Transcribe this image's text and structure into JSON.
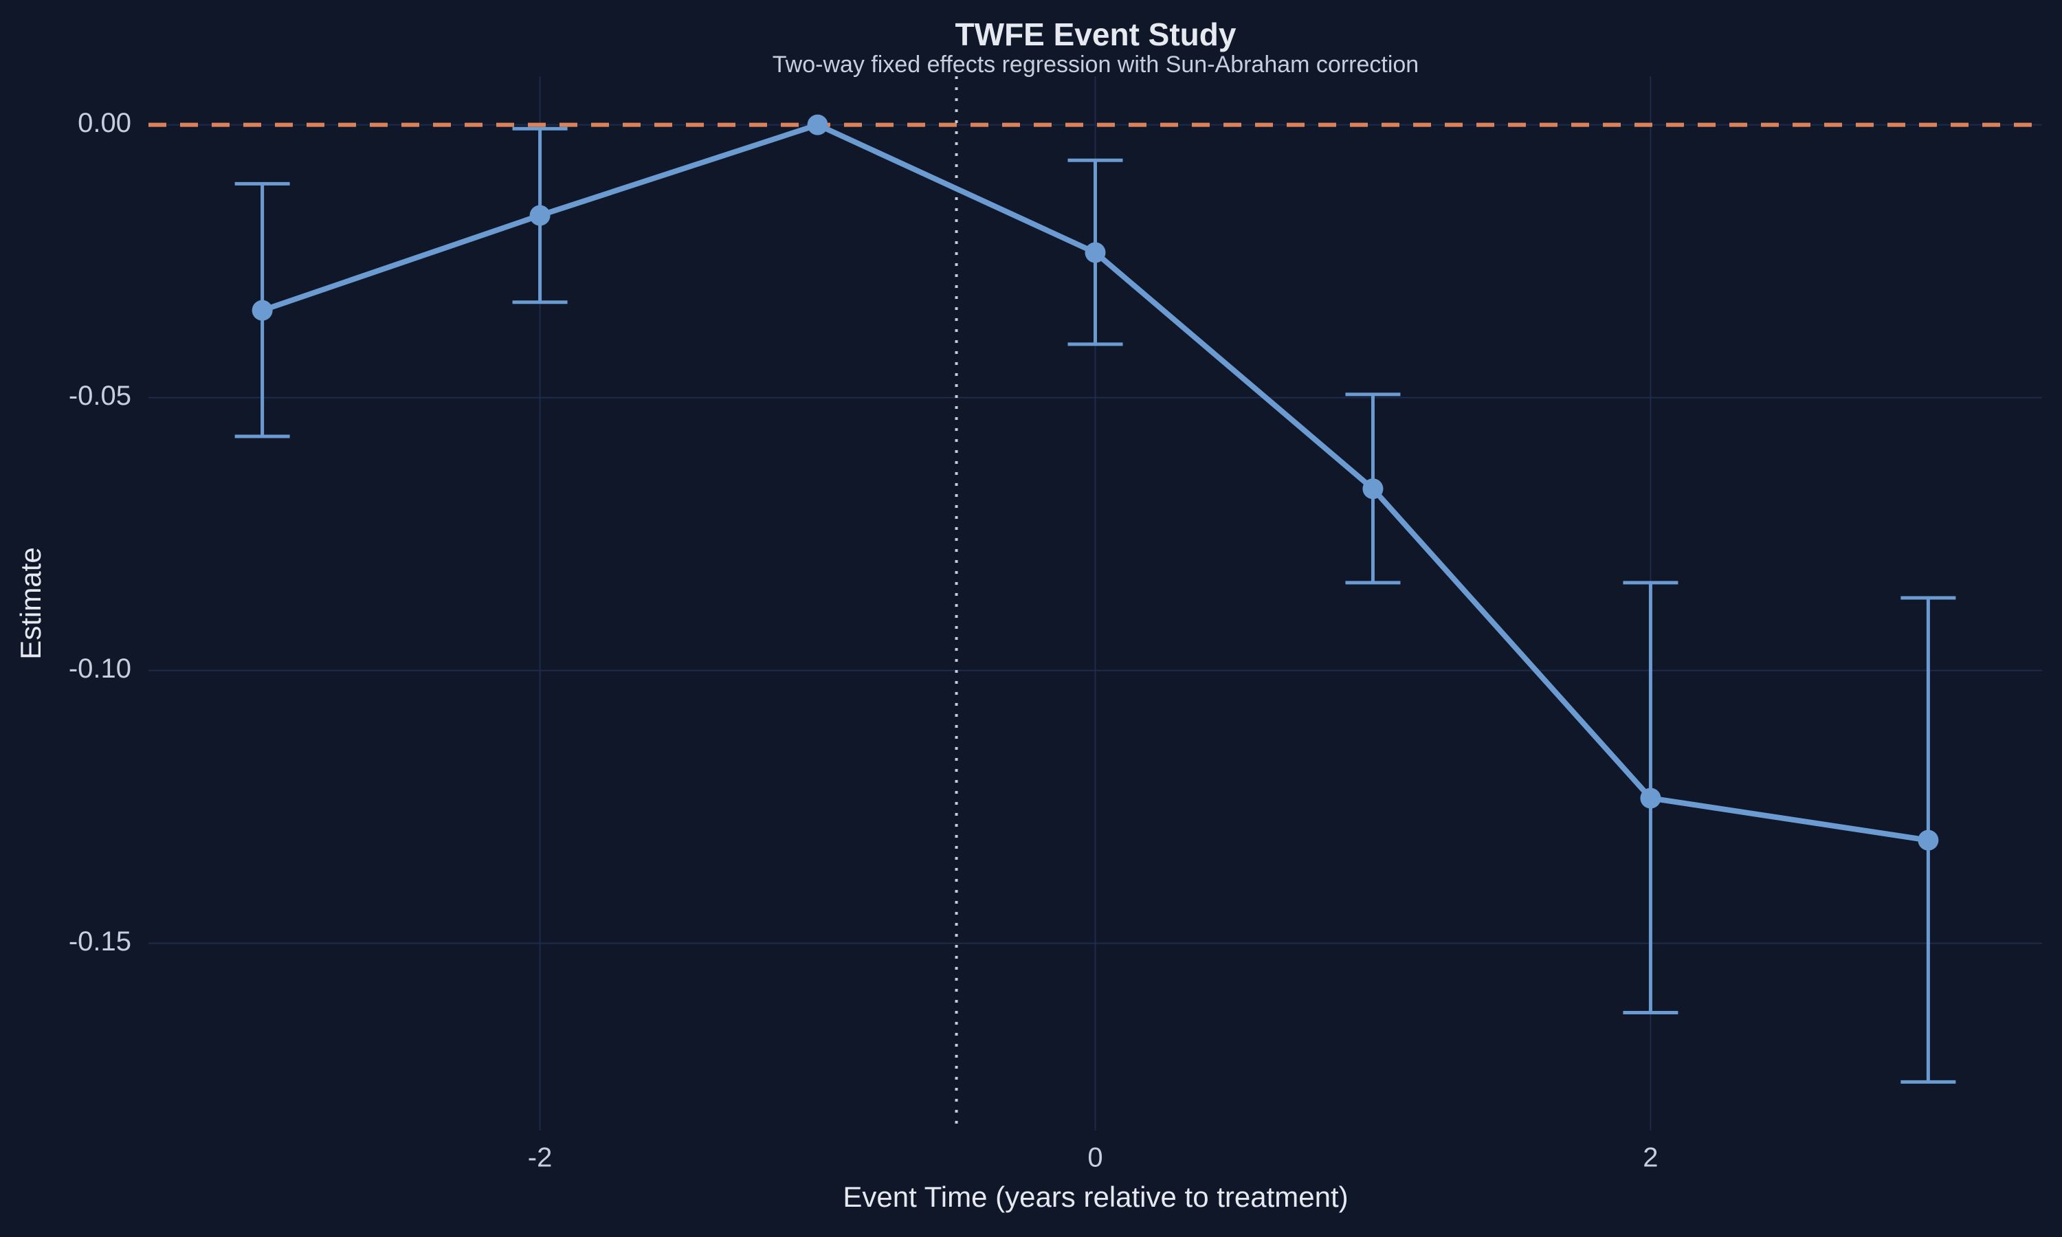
{
  "chart_data": {
    "type": "line",
    "title": "TWFE Event Study",
    "subtitle": "Two-way fixed effects regression with Sun-Abraham correction",
    "x_label": "Event Time (years relative to treatment)",
    "y_label": "Estimate",
    "x": [
      -3,
      -2,
      -1,
      0,
      1,
      2,
      3
    ],
    "series": [
      {
        "color": "#6b9bd1",
        "values": [
          -0.034,
          -0.0166,
          0,
          -0.0234,
          -0.0667,
          -0.1234,
          -0.1311
        ],
        "lower": [
          -0.0571,
          -0.0325,
          null,
          -0.0402,
          -0.0839,
          -0.1627,
          -0.1754
        ],
        "upper": [
          -0.0108,
          -0.0007,
          null,
          -0.0065,
          -0.0494,
          -0.0839,
          -0.0867
        ]
      }
    ],
    "xlim": [
      -3.41,
      3.41
    ],
    "xticks": [
      -2,
      0,
      2
    ],
    "ylim": [
      -0.1843,
      0.0089
    ],
    "yticks": [
      {
        "value": 0,
        "label": "0.00"
      },
      {
        "value": -0.05,
        "label": "-0.05"
      },
      {
        "value": -0.1,
        "label": "-0.10"
      },
      {
        "value": -0.15,
        "label": "-0.15"
      }
    ],
    "grid": true,
    "hline": {
      "value": 0,
      "color": "#d9825b"
    },
    "vline": {
      "value": -0.5,
      "color": "#c8cdd8"
    }
  }
}
